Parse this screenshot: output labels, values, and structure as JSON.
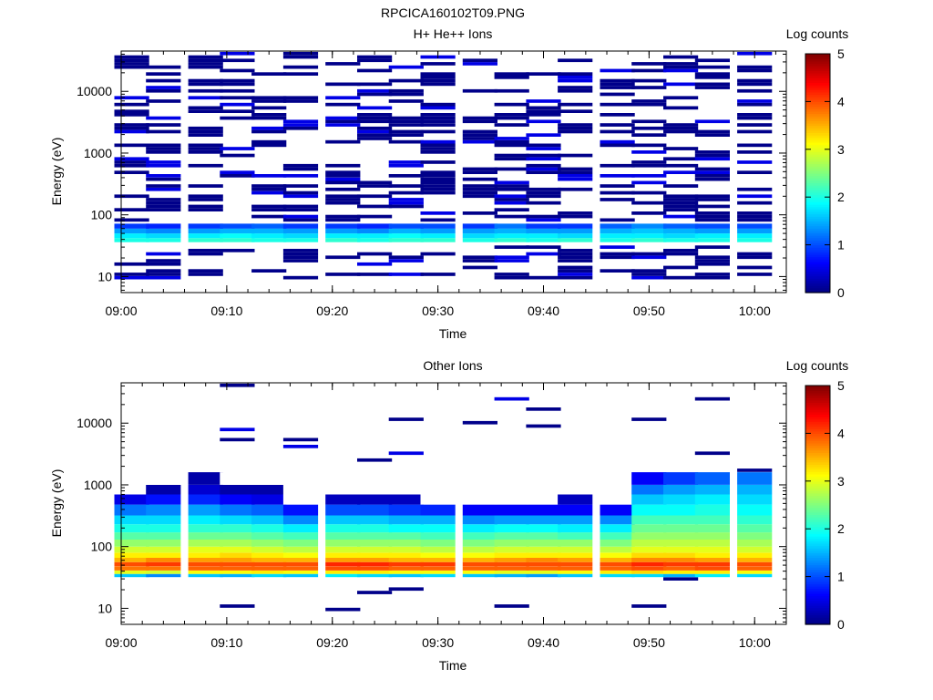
{
  "figure_title": "RPCICA160102T09.PNG",
  "colorbar": {
    "label": "Log counts",
    "ticks": [
      "0",
      "1",
      "2",
      "3",
      "4",
      "5"
    ],
    "range": [
      0,
      5
    ],
    "colormap": "jet"
  },
  "chart_data": [
    {
      "type": "heatmap",
      "title": "H+ He++ Ions",
      "xlabel": "Time",
      "ylabel": "Energy (eV)",
      "yscale": "log",
      "xlim": [
        "09:00",
        "10:03"
      ],
      "ylim": [
        5.5,
        45000
      ],
      "xticks": [
        "09:00",
        "09:10",
        "09:20",
        "09:30",
        "09:40",
        "09:50",
        "10:00"
      ],
      "yticks": [
        "10",
        "100",
        "1000",
        "10000"
      ],
      "time_bins": [
        "09:01",
        "09:04",
        "09:08",
        "09:11",
        "09:14",
        "09:17",
        "09:21",
        "09:24",
        "09:27",
        "09:30",
        "09:34",
        "09:37",
        "09:40",
        "09:43",
        "09:47",
        "09:50",
        "09:53",
        "09:56",
        "10:00"
      ],
      "energy_bands_eV": [
        {
          "low": 36,
          "high": 42,
          "log_counts": [
            2.0,
            2.0,
            2.1,
            2.1,
            2.0,
            2.0,
            2.1,
            2.0,
            2.1,
            2.1,
            2.0,
            2.1,
            2.0,
            2.1,
            2.0,
            2.1,
            2.0,
            2.0,
            2.0
          ]
        },
        {
          "low": 42,
          "high": 50,
          "log_counts": [
            1.8,
            1.7,
            1.8,
            1.9,
            1.8,
            1.7,
            1.8,
            1.8,
            1.9,
            1.8,
            1.7,
            1.8,
            1.8,
            1.7,
            1.8,
            1.8,
            1.7,
            1.8,
            1.8
          ]
        },
        {
          "low": 50,
          "high": 60,
          "log_counts": [
            1.4,
            1.3,
            1.4,
            1.5,
            1.5,
            1.4,
            1.4,
            1.3,
            1.5,
            1.4,
            1.4,
            1.5,
            1.4,
            1.4,
            1.5,
            1.6,
            1.5,
            1.4,
            1.4
          ]
        },
        {
          "low": 60,
          "high": 72,
          "log_counts": [
            0.9,
            0.8,
            0.9,
            1.0,
            1.1,
            0.9,
            0.9,
            0.8,
            1.0,
            1.0,
            0.9,
            1.2,
            0.9,
            0.9,
            1.1,
            1.3,
            1.1,
            1.0,
            1.0
          ]
        }
      ],
      "sparse_counts": "scattered single counts (log counts 0–0.6) at energies 9–45000 eV across all time bins"
    },
    {
      "type": "heatmap",
      "title": "Other Ions",
      "xlabel": "Time",
      "ylabel": "Energy (eV)",
      "yscale": "log",
      "xlim": [
        "09:00",
        "10:03"
      ],
      "ylim": [
        5.5,
        45000
      ],
      "xticks": [
        "09:00",
        "09:10",
        "09:20",
        "09:30",
        "09:40",
        "09:50",
        "10:00"
      ],
      "yticks": [
        "10",
        "100",
        "1000",
        "10000"
      ],
      "time_bins": [
        "09:01",
        "09:04",
        "09:08",
        "09:11",
        "09:14",
        "09:17",
        "09:21",
        "09:24",
        "09:27",
        "09:30",
        "09:34",
        "09:37",
        "09:40",
        "09:43",
        "09:47",
        "09:50",
        "09:53",
        "09:56",
        "10:00"
      ],
      "energy_bands_eV": [
        {
          "low": 32,
          "high": 36,
          "log_counts": [
            1.6,
            1.3,
            1.6,
            1.5,
            1.7,
            1.6,
            1.8,
            1.7,
            1.6,
            1.7,
            1.6,
            1.5,
            1.4,
            1.6,
            1.7,
            1.7,
            1.5,
            1.8,
            1.7
          ]
        },
        {
          "low": 36,
          "high": 41,
          "log_counts": [
            3.0,
            2.9,
            3.1,
            3.1,
            3.2,
            3.1,
            3.2,
            3.2,
            3.1,
            3.1,
            3.1,
            3.0,
            3.0,
            3.1,
            3.2,
            3.3,
            3.2,
            3.2,
            3.1
          ]
        },
        {
          "low": 41,
          "high": 48,
          "log_counts": [
            3.8,
            3.8,
            3.9,
            3.9,
            3.9,
            3.9,
            4.0,
            4.0,
            3.9,
            3.9,
            3.9,
            3.9,
            3.9,
            3.9,
            3.9,
            4.0,
            3.9,
            4.0,
            3.9
          ]
        },
        {
          "low": 48,
          "high": 56,
          "log_counts": [
            4.0,
            4.1,
            4.0,
            4.0,
            4.0,
            4.0,
            4.2,
            4.2,
            4.1,
            4.1,
            4.0,
            4.0,
            4.0,
            4.0,
            4.0,
            4.2,
            4.1,
            4.1,
            4.0
          ]
        },
        {
          "low": 56,
          "high": 66,
          "log_counts": [
            3.5,
            3.7,
            3.6,
            3.6,
            3.5,
            3.5,
            3.6,
            3.6,
            3.5,
            3.5,
            3.5,
            3.6,
            3.7,
            3.6,
            3.5,
            3.7,
            3.7,
            3.6,
            3.5
          ]
        },
        {
          "low": 66,
          "high": 80,
          "log_counts": [
            3.2,
            3.2,
            3.2,
            3.3,
            3.2,
            3.1,
            3.2,
            3.2,
            3.2,
            3.1,
            3.1,
            3.2,
            3.2,
            3.2,
            3.1,
            3.3,
            3.3,
            3.2,
            3.2
          ]
        },
        {
          "low": 80,
          "high": 100,
          "log_counts": [
            2.9,
            2.9,
            3.0,
            3.0,
            2.9,
            2.8,
            2.9,
            2.9,
            2.9,
            2.8,
            2.8,
            2.9,
            2.9,
            2.9,
            2.8,
            3.0,
            3.0,
            3.0,
            2.9
          ]
        },
        {
          "low": 100,
          "high": 130,
          "log_counts": [
            2.6,
            2.6,
            2.7,
            2.7,
            2.6,
            2.5,
            2.6,
            2.6,
            2.6,
            2.5,
            2.5,
            2.6,
            2.6,
            2.6,
            2.5,
            2.8,
            2.8,
            2.8,
            2.7
          ]
        },
        {
          "low": 130,
          "high": 170,
          "log_counts": [
            2.3,
            2.3,
            2.4,
            2.4,
            2.3,
            2.2,
            2.3,
            2.3,
            2.3,
            2.2,
            2.2,
            2.3,
            2.3,
            2.2,
            2.2,
            2.6,
            2.6,
            2.6,
            2.5
          ]
        },
        {
          "low": 170,
          "high": 230,
          "log_counts": [
            2.0,
            2.0,
            2.1,
            2.1,
            2.0,
            1.8,
            2.0,
            2.0,
            1.9,
            1.9,
            1.8,
            1.9,
            1.9,
            1.8,
            1.8,
            2.4,
            2.4,
            2.4,
            2.3
          ]
        },
        {
          "low": 230,
          "high": 320,
          "log_counts": [
            1.7,
            1.7,
            1.8,
            1.7,
            1.6,
            1.3,
            1.6,
            1.6,
            1.5,
            1.5,
            1.3,
            1.4,
            1.4,
            1.4,
            1.3,
            2.2,
            2.2,
            2.2,
            2.1
          ]
        },
        {
          "low": 320,
          "high": 480,
          "log_counts": [
            1.2,
            1.3,
            1.4,
            1.2,
            1.1,
            0.7,
            1.0,
            1.0,
            0.9,
            0.8,
            0.6,
            0.6,
            0.6,
            0.6,
            0.6,
            1.9,
            1.9,
            2.0,
            1.9
          ]
        },
        {
          "low": 480,
          "high": 700,
          "log_counts": [
            0.5,
            0.7,
            0.8,
            0.6,
            0.5,
            0.0,
            0.3,
            0.3,
            0.3,
            0.0,
            0.0,
            0.0,
            0.0,
            0.3,
            0.0,
            1.6,
            1.7,
            1.8,
            1.7
          ]
        },
        {
          "low": 700,
          "high": 1000,
          "log_counts": [
            0.0,
            0.2,
            0.4,
            0.2,
            0.2,
            0.0,
            0.0,
            0.0,
            0.0,
            0.0,
            0.0,
            0.0,
            0.0,
            0.0,
            0.0,
            1.2,
            1.4,
            1.5,
            1.5
          ]
        },
        {
          "low": 1000,
          "high": 1600,
          "log_counts": [
            0.0,
            0.0,
            0.2,
            0.0,
            0.0,
            0.0,
            0.0,
            0.0,
            0.0,
            0.0,
            0.0,
            0.0,
            0.0,
            0.0,
            0.0,
            0.6,
            0.9,
            1.1,
            1.2
          ]
        }
      ],
      "sparse_counts": "scattered single counts (log counts 0–0.6) at energies 9–45000 eV across all time bins"
    }
  ]
}
